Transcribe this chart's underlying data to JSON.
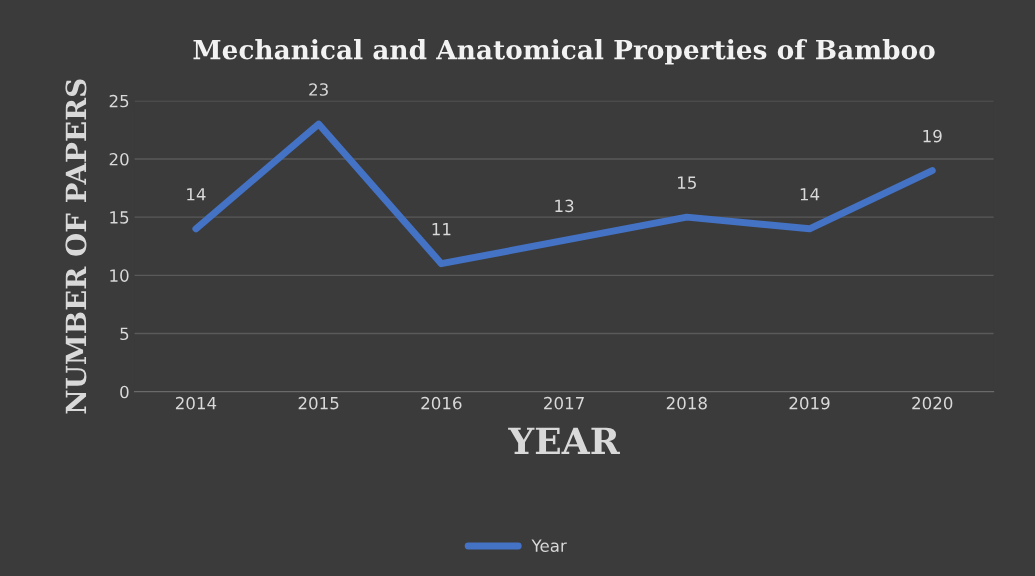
{
  "chart_data": {
    "type": "line",
    "title": "Mechanical and Anatomical Properties of Bamboo",
    "xlabel": "YEAR",
    "ylabel": "NUMBER OF PAPERS",
    "categories": [
      "2014",
      "2015",
      "2016",
      "2017",
      "2018",
      "2019",
      "2020"
    ],
    "series": [
      {
        "name": "Year",
        "color": "#4472c4",
        "values": [
          14,
          23,
          11,
          13,
          15,
          14,
          19
        ]
      }
    ],
    "ylim": [
      0,
      25
    ],
    "yticks": [
      0,
      5,
      10,
      15,
      20,
      25
    ],
    "grid": "y",
    "legend": "bottom",
    "data_labels": true,
    "marker": "none",
    "line_style": "solid"
  }
}
